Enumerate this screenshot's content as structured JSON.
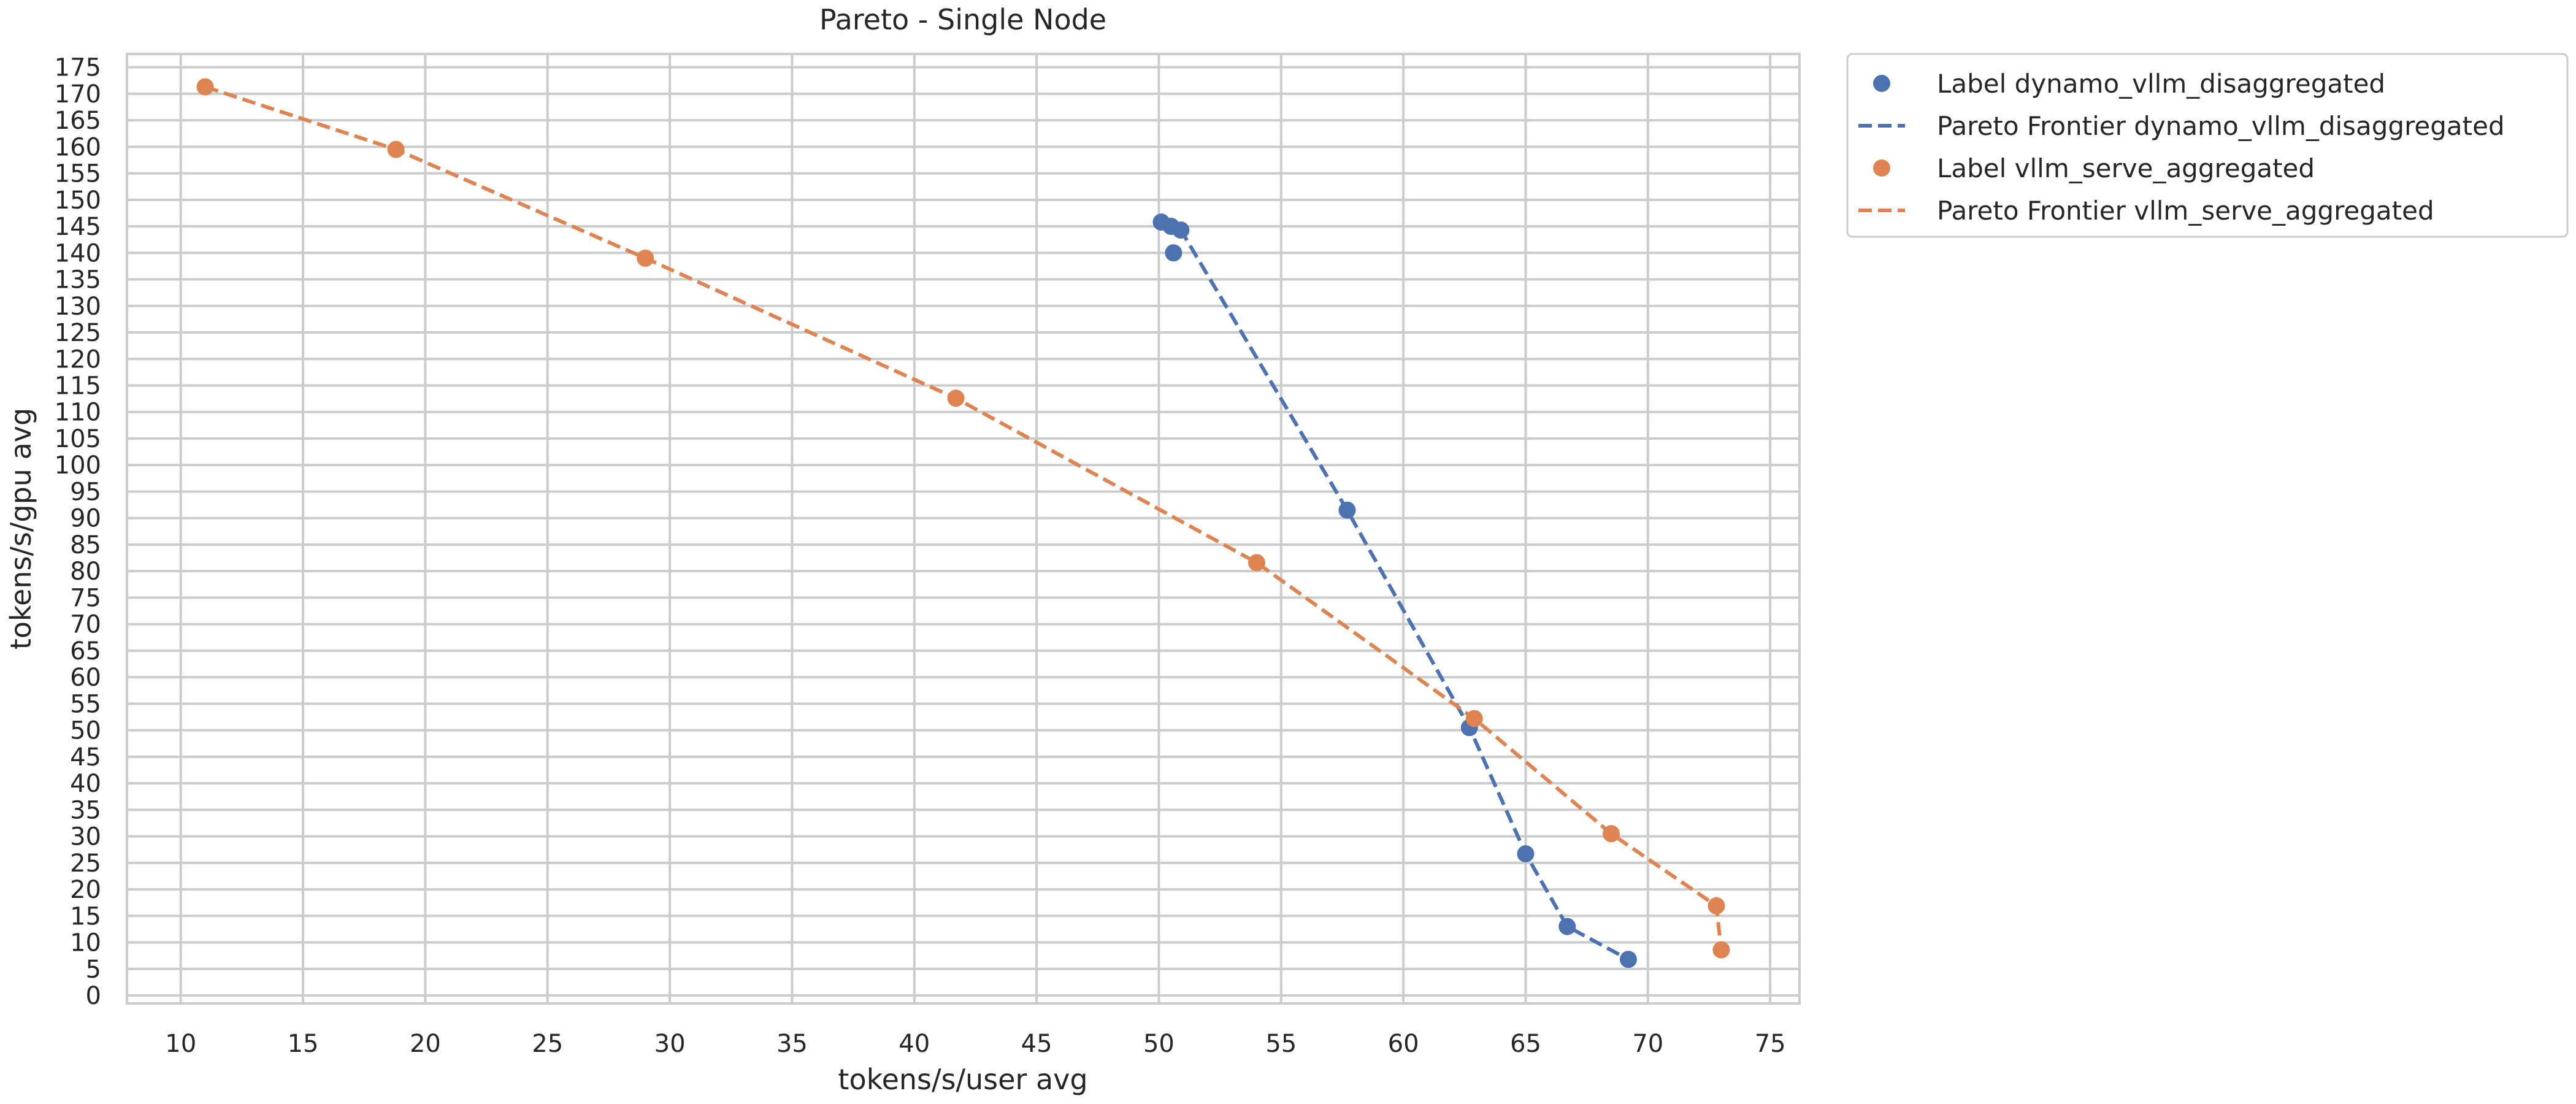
{
  "chart_data": {
    "type": "scatter",
    "title": "Pareto - Single Node",
    "xlabel": "tokens/s/user avg",
    "ylabel": "tokens/s/gpu avg",
    "xlim": [
      7.8,
      76.2
    ],
    "ylim": [
      -1.5,
      177.5
    ],
    "xticks": [
      10,
      15,
      20,
      25,
      30,
      35,
      40,
      45,
      50,
      55,
      60,
      65,
      70,
      75
    ],
    "yticks": [
      0,
      5,
      10,
      15,
      20,
      25,
      30,
      35,
      40,
      45,
      50,
      55,
      60,
      65,
      70,
      75,
      80,
      85,
      90,
      95,
      100,
      105,
      110,
      115,
      120,
      125,
      130,
      135,
      140,
      145,
      150,
      155,
      160,
      165,
      170,
      175
    ],
    "grid": true,
    "legend_position": "outside-top-right",
    "series": [
      {
        "name": "Label dynamo_vllm_disaggregated",
        "kind": "scatter",
        "color": "#4c72b0",
        "points": [
          [
            50.1,
            145.8
          ],
          [
            50.5,
            145.0
          ],
          [
            50.9,
            144.3
          ],
          [
            50.6,
            140.0
          ],
          [
            57.7,
            91.5
          ],
          [
            62.7,
            50.5
          ],
          [
            65.0,
            26.7
          ],
          [
            66.7,
            13.0
          ],
          [
            69.2,
            6.8
          ]
        ]
      },
      {
        "name": "Pareto Frontier dynamo_vllm_disaggregated",
        "kind": "line",
        "dashed": true,
        "color": "#4c72b0",
        "points": [
          [
            50.1,
            145.8
          ],
          [
            50.5,
            145.0
          ],
          [
            50.9,
            144.3
          ],
          [
            57.7,
            91.5
          ],
          [
            62.7,
            50.5
          ],
          [
            65.0,
            26.7
          ],
          [
            66.7,
            13.0
          ],
          [
            69.2,
            6.8
          ]
        ]
      },
      {
        "name": "Label vllm_serve_aggregated",
        "kind": "scatter",
        "color": "#dd8452",
        "points": [
          [
            11.0,
            171.3
          ],
          [
            18.8,
            159.5
          ],
          [
            29.0,
            139.0
          ],
          [
            41.7,
            112.6
          ],
          [
            54.0,
            81.6
          ],
          [
            62.9,
            52.2
          ],
          [
            68.5,
            30.5
          ],
          [
            72.8,
            16.9
          ],
          [
            73.0,
            8.6
          ]
        ]
      },
      {
        "name": "Pareto Frontier vllm_serve_aggregated",
        "kind": "line",
        "dashed": true,
        "color": "#dd8452",
        "points": [
          [
            11.0,
            171.3
          ],
          [
            18.8,
            159.5
          ],
          [
            29.0,
            139.0
          ],
          [
            41.7,
            112.6
          ],
          [
            54.0,
            81.6
          ],
          [
            62.9,
            52.2
          ],
          [
            68.5,
            30.5
          ],
          [
            72.8,
            16.9
          ],
          [
            73.0,
            8.6
          ]
        ]
      }
    ]
  }
}
